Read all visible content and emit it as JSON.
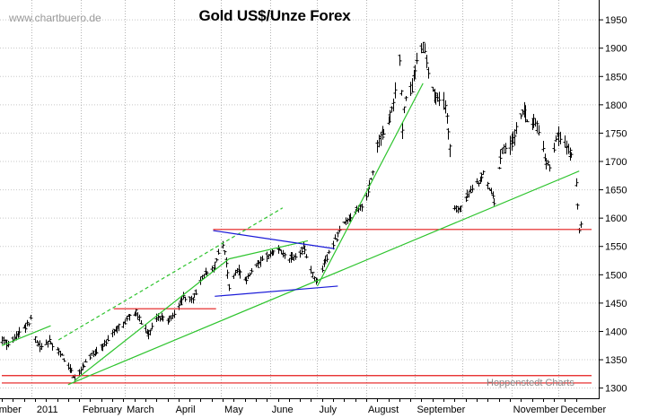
{
  "chart_data": {
    "type": "ohlc",
    "title": "Gold US$/Unze Forex",
    "watermark": "www.chartbuero.de",
    "credit": "Hoppenstedt Charts",
    "y_ticks": [
      1300,
      1350,
      1400,
      1450,
      1500,
      1550,
      1600,
      1650,
      1700,
      1750,
      1800,
      1850,
      1900,
      1950
    ],
    "ylim": [
      1282,
      1985
    ],
    "x_domain": [
      "2010-12-13",
      "2011-12-15"
    ],
    "x_labels": [
      {
        "text": "mber",
        "date": "2010-12-10"
      },
      {
        "text": "2011",
        "date": "2011-01-03"
      },
      {
        "text": "February",
        "date": "2011-02-01"
      },
      {
        "text": "March",
        "date": "2011-03-01"
      },
      {
        "text": "April",
        "date": "2011-04-01"
      },
      {
        "text": "May",
        "date": "2011-05-02"
      },
      {
        "text": "June",
        "date": "2011-06-01"
      },
      {
        "text": "July",
        "date": "2011-07-01"
      },
      {
        "text": "August",
        "date": "2011-08-01"
      },
      {
        "text": "September",
        "date": "2011-09-01"
      },
      {
        "text": "November",
        "date": "2011-11-01"
      },
      {
        "text": "December",
        "date": "2011-12-01"
      }
    ],
    "month_dividers": [
      "2011-01-01",
      "2011-02-01",
      "2011-03-01",
      "2011-04-01",
      "2011-05-01",
      "2011-06-01",
      "2011-07-01",
      "2011-08-01",
      "2011-09-01",
      "2011-10-01",
      "2011-11-01",
      "2011-12-01"
    ],
    "price_path": [
      [
        "2010-12-13",
        1385
      ],
      [
        "2010-12-17",
        1375
      ],
      [
        "2010-12-22",
        1390
      ],
      [
        "2010-12-27",
        1405
      ],
      [
        "2010-12-31",
        1420
      ],
      [
        "2011-01-04",
        1378
      ],
      [
        "2011-01-07",
        1370
      ],
      [
        "2011-01-12",
        1383
      ],
      [
        "2011-01-18",
        1365
      ],
      [
        "2011-01-24",
        1338
      ],
      [
        "2011-01-28",
        1318
      ],
      [
        "2011-02-02",
        1336
      ],
      [
        "2011-02-09",
        1362
      ],
      [
        "2011-02-16",
        1375
      ],
      [
        "2011-02-22",
        1405
      ],
      [
        "2011-02-28",
        1412
      ],
      [
        "2011-03-04",
        1430
      ],
      [
        "2011-03-08",
        1434
      ],
      [
        "2011-03-11",
        1415
      ],
      [
        "2011-03-16",
        1395
      ],
      [
        "2011-03-22",
        1425
      ],
      [
        "2011-03-28",
        1420
      ],
      [
        "2011-04-01",
        1430
      ],
      [
        "2011-04-07",
        1460
      ],
      [
        "2011-04-13",
        1458
      ],
      [
        "2011-04-20",
        1500
      ],
      [
        "2011-04-26",
        1510
      ],
      [
        "2011-05-01",
        1560
      ],
      [
        "2011-05-03",
        1545
      ],
      [
        "2011-05-06",
        1480
      ],
      [
        "2011-05-11",
        1510
      ],
      [
        "2011-05-16",
        1488
      ],
      [
        "2011-05-20",
        1505
      ],
      [
        "2011-05-25",
        1520
      ],
      [
        "2011-05-31",
        1535
      ],
      [
        "2011-06-06",
        1545
      ],
      [
        "2011-06-11",
        1530
      ],
      [
        "2011-06-16",
        1530
      ],
      [
        "2011-06-22",
        1548
      ],
      [
        "2011-06-28",
        1500
      ],
      [
        "2011-07-01",
        1490
      ],
      [
        "2011-07-07",
        1530
      ],
      [
        "2011-07-12",
        1560
      ],
      [
        "2011-07-19",
        1595
      ],
      [
        "2011-07-26",
        1615
      ],
      [
        "2011-07-30",
        1625
      ],
      [
        "2011-08-04",
        1665
      ],
      [
        "2011-08-09",
        1740
      ],
      [
        "2011-08-12",
        1750
      ],
      [
        "2011-08-17",
        1790
      ],
      [
        "2011-08-22",
        1880
      ],
      [
        "2011-08-24",
        1760
      ],
      [
        "2011-08-26",
        1820
      ],
      [
        "2011-08-30",
        1830
      ],
      [
        "2011-09-02",
        1880
      ],
      [
        "2011-09-06",
        1905
      ],
      [
        "2011-09-09",
        1860
      ],
      [
        "2011-09-13",
        1820
      ],
      [
        "2011-09-16",
        1805
      ],
      [
        "2011-09-20",
        1800
      ],
      [
        "2011-09-22",
        1760
      ],
      [
        "2011-09-26",
        1620
      ],
      [
        "2011-09-29",
        1615
      ],
      [
        "2011-10-04",
        1640
      ],
      [
        "2011-10-07",
        1650
      ],
      [
        "2011-10-11",
        1665
      ],
      [
        "2011-10-14",
        1680
      ],
      [
        "2011-10-19",
        1645
      ],
      [
        "2011-10-21",
        1630
      ],
      [
        "2011-10-26",
        1720
      ],
      [
        "2011-10-31",
        1725
      ],
      [
        "2011-11-04",
        1755
      ],
      [
        "2011-11-08",
        1790
      ],
      [
        "2011-11-11",
        1775
      ],
      [
        "2011-11-16",
        1770
      ],
      [
        "2011-11-21",
        1715
      ],
      [
        "2011-11-25",
        1690
      ],
      [
        "2011-11-30",
        1745
      ],
      [
        "2011-12-06",
        1730
      ],
      [
        "2011-12-09",
        1710
      ],
      [
        "2011-12-12",
        1660
      ],
      [
        "2011-12-14",
        1580
      ],
      [
        "2011-12-15",
        1585
      ]
    ],
    "horizontal_lines": [
      {
        "y": 1580,
        "from": "2011-04-26",
        "to": "2011-12-15",
        "color": "#e41a1a"
      },
      {
        "y": 1440,
        "from": "2011-02-22",
        "to": "2011-04-21",
        "color": "#e41a1a"
      },
      {
        "y": 1322,
        "from": "2010-12-13",
        "to": "2011-12-15",
        "color": "#e41a1a"
      },
      {
        "y": 1309,
        "from": "2010-12-13",
        "to": "2011-12-15",
        "color": "#e41a1a"
      }
    ],
    "trendlines": [
      {
        "name": "support-long",
        "p1": [
          "2011-01-24",
          1306
        ],
        "p2": [
          "2011-12-14",
          1683
        ],
        "color": "#2ec42e",
        "dashed": false
      },
      {
        "name": "support-mid",
        "p1": [
          "2011-01-28",
          1313
        ],
        "p2": [
          "2011-05-06",
          1528
        ],
        "color": "#2ec42e",
        "dashed": false
      },
      {
        "name": "support-steep",
        "p1": [
          "2011-07-01",
          1480
        ],
        "p2": [
          "2011-09-06",
          1838
        ],
        "color": "#2ec42e",
        "dashed": false
      },
      {
        "name": "channel-dashed",
        "p1": [
          "2011-01-18",
          1385
        ],
        "p2": [
          "2011-06-09",
          1618
        ],
        "color": "#2ec42e",
        "dashed": true
      },
      {
        "name": "channel-small",
        "p1": [
          "2010-12-13",
          1375
        ],
        "p2": [
          "2011-01-13",
          1410
        ],
        "color": "#2ec42e",
        "dashed": false
      },
      {
        "name": "may-july-support",
        "p1": [
          "2011-05-06",
          1528
        ],
        "p2": [
          "2011-06-25",
          1560
        ],
        "color": "#2ec42e",
        "dashed": false
      },
      {
        "name": "triangle-top",
        "p1": [
          "2011-04-26",
          1578
        ],
        "p2": [
          "2011-07-12",
          1546
        ],
        "color": "#1a1ad8",
        "dashed": false
      },
      {
        "name": "triangle-bottom",
        "p1": [
          "2011-04-27",
          1462
        ],
        "p2": [
          "2011-07-14",
          1480
        ],
        "color": "#1a1ad8",
        "dashed": false
      }
    ]
  }
}
